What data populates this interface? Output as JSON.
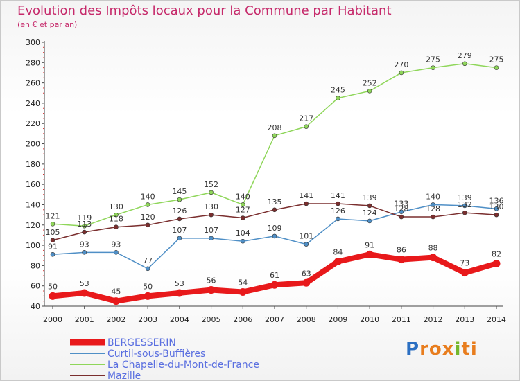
{
  "title": "Evolution des Impôts locaux pour la Commune par Habitant",
  "subtitle": "(en € et par an)",
  "logo": {
    "letters": [
      "P",
      "r",
      "o",
      "x",
      "i",
      "t",
      "i"
    ],
    "colors": [
      "#2b6fc2",
      "#e87d1e",
      "#e87d1e",
      "#e87d1e",
      "#74b72e",
      "#e87d1e",
      "#e87d1e"
    ]
  },
  "chart_data": {
    "type": "line",
    "title": "Evolution des Impôts locaux pour la Commune par Habitant",
    "subtitle": "(en € et par an)",
    "xlabel": "",
    "ylabel": "",
    "x": [
      "2000",
      "2001",
      "2002",
      "2003",
      "2004",
      "2005",
      "2006",
      "2007",
      "2008",
      "2009",
      "2010",
      "2011",
      "2012",
      "2013",
      "2014"
    ],
    "ylim": [
      40,
      300
    ],
    "yticks": [
      40,
      60,
      80,
      100,
      120,
      140,
      160,
      180,
      200,
      220,
      240,
      260,
      280,
      300
    ],
    "grid": false,
    "legend_position": "bottom-left",
    "series": [
      {
        "name": "BERGESSERIN",
        "color": "#e8191b",
        "values": [
          50,
          53,
          45,
          50,
          53,
          56,
          54,
          61,
          63,
          84,
          91,
          86,
          88,
          73,
          82
        ]
      },
      {
        "name": "Curtil-sous-Buffières",
        "color": "#4f8fc6",
        "values": [
          91,
          93,
          93,
          77,
          107,
          107,
          104,
          109,
          101,
          126,
          124,
          133,
          140,
          139,
          136
        ]
      },
      {
        "name": "La Chapelle-du-Mont-de-France",
        "color": "#8fd65a",
        "values": [
          121,
          119,
          130,
          140,
          145,
          152,
          140,
          208,
          217,
          245,
          252,
          270,
          275,
          279,
          275
        ]
      },
      {
        "name": "Mazille",
        "color": "#7a2e2e",
        "values": [
          105,
          113,
          118,
          120,
          126,
          130,
          127,
          135,
          141,
          141,
          139,
          128,
          128,
          132,
          130
        ]
      }
    ],
    "data_labels": [
      [
        "50",
        "53",
        "45",
        "50",
        "53",
        "56",
        "54",
        "61",
        "63",
        "84",
        "91",
        "86",
        "88",
        "73",
        "82"
      ],
      [
        "91",
        "93",
        "93",
        "77",
        "107",
        "107",
        "104",
        "109",
        "101",
        "126",
        "124",
        "133",
        "140",
        "139",
        "136"
      ],
      [
        "121",
        "119",
        "130",
        "140",
        "145",
        "152",
        "140",
        "208",
        "217",
        "245",
        "252",
        "270",
        "275",
        "279",
        "275"
      ],
      [
        "105",
        "113",
        "118",
        "120",
        "126",
        "130",
        "127",
        "135",
        "141",
        "141",
        "139",
        "128",
        "128",
        "132",
        "130"
      ]
    ]
  }
}
